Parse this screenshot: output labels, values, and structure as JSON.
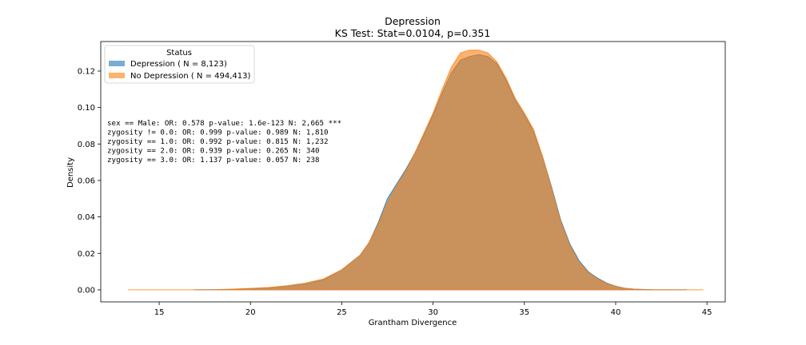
{
  "chart_data": {
    "type": "area",
    "title": "Depression",
    "subtitle": "KS Test: Stat=0.0104, p=0.351",
    "xlabel": "Grantham Divergence",
    "ylabel": "Density",
    "xlim": [
      11.8,
      46.0
    ],
    "ylim": [
      -0.0066,
      0.1362
    ],
    "xticks": [
      15,
      20,
      25,
      30,
      35,
      40,
      45
    ],
    "yticks": [
      0.0,
      0.02,
      0.04,
      0.06,
      0.08,
      0.1,
      0.12
    ],
    "ytick_labels": [
      "0.00",
      "0.02",
      "0.04",
      "0.06",
      "0.08",
      "0.10",
      "0.12"
    ],
    "grid": false,
    "legend": {
      "title": "Status",
      "placement": "top-left"
    },
    "annotations": [
      "sex == Male: OR: 0.578 p-value: 1.6e-123 N: 2,665 ***",
      "zygosity != 0.0: OR: 0.999 p-value: 0.989 N: 1,810",
      "zygosity == 1.0: OR: 0.992 p-value: 0.815 N: 1,232",
      "zygosity == 2.0: OR: 0.939 p-value: 0.265 N: 340",
      "zygosity == 3.0: OR: 1.137 p-value: 0.057 N: 238"
    ],
    "series": [
      {
        "name": "Depression ( N = 8,123)",
        "color": "#1f77b4",
        "x": [
          16.9,
          18.0,
          19.0,
          20.0,
          21.0,
          22.0,
          23.0,
          24.0,
          25.0,
          26.0,
          26.5,
          27.0,
          27.5,
          28.0,
          28.5,
          29.0,
          29.5,
          30.0,
          30.5,
          31.0,
          31.5,
          32.0,
          32.5,
          33.0,
          33.5,
          34.0,
          34.5,
          35.0,
          35.5,
          36.0,
          36.5,
          37.0,
          37.5,
          38.0,
          38.5,
          39.0,
          39.5,
          40.0,
          40.5,
          41.0,
          42.0,
          43.9
        ],
        "y": [
          0.0,
          0.0001,
          0.0003,
          0.0007,
          0.0012,
          0.002,
          0.0032,
          0.0055,
          0.011,
          0.019,
          0.026,
          0.037,
          0.05,
          0.058,
          0.066,
          0.075,
          0.085,
          0.096,
          0.108,
          0.119,
          0.126,
          0.128,
          0.129,
          0.128,
          0.124,
          0.115,
          0.104,
          0.096,
          0.087,
          0.073,
          0.056,
          0.038,
          0.025,
          0.016,
          0.01,
          0.0065,
          0.0038,
          0.002,
          0.0009,
          0.0004,
          0.0001,
          0.0
        ]
      },
      {
        "name": "No Depression ( N = 494,413)",
        "color": "#ff7f0e",
        "x": [
          13.3,
          17.0,
          18.0,
          19.0,
          20.0,
          21.0,
          22.0,
          23.0,
          24.0,
          25.0,
          26.0,
          26.5,
          27.0,
          27.5,
          28.0,
          28.5,
          29.0,
          29.5,
          30.0,
          30.5,
          31.0,
          31.5,
          32.0,
          32.5,
          33.0,
          33.5,
          34.0,
          34.5,
          35.0,
          35.5,
          36.0,
          36.5,
          37.0,
          37.5,
          38.0,
          38.5,
          39.0,
          39.5,
          40.0,
          40.5,
          41.0,
          42.0,
          44.8
        ],
        "y": [
          0.0,
          0.0,
          0.0001,
          0.0004,
          0.0008,
          0.0013,
          0.0023,
          0.0037,
          0.006,
          0.011,
          0.019,
          0.026,
          0.036,
          0.048,
          0.057,
          0.065,
          0.075,
          0.086,
          0.097,
          0.11,
          0.122,
          0.13,
          0.1315,
          0.1315,
          0.13,
          0.125,
          0.116,
          0.105,
          0.097,
          0.088,
          0.073,
          0.055,
          0.037,
          0.024,
          0.015,
          0.0095,
          0.006,
          0.0035,
          0.0018,
          0.0008,
          0.0003,
          0.0001,
          0.0
        ]
      }
    ]
  }
}
